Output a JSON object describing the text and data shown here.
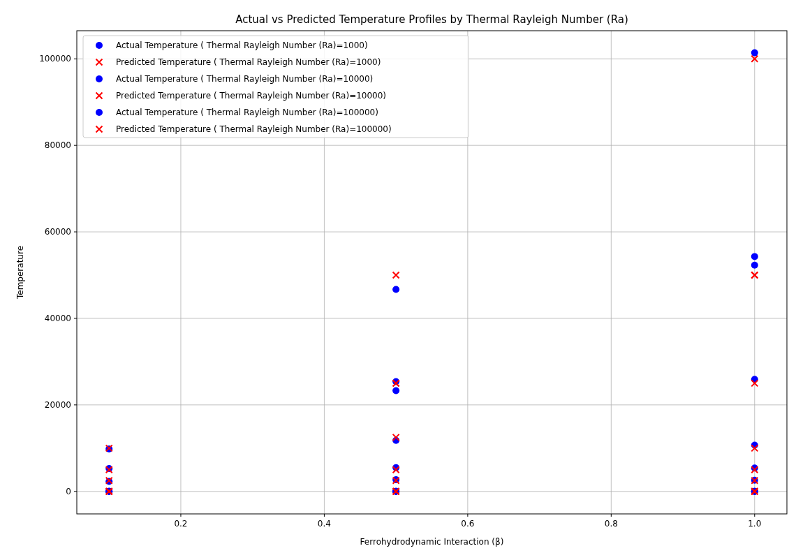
{
  "chart_data": {
    "type": "scatter",
    "title": "Actual vs Predicted Temperature Profiles by Thermal Rayleigh Number (Ra)",
    "xlabel": "Ferrohydrodynamic Interaction (β)",
    "ylabel": "Temperature",
    "xlim": [
      0.055,
      1.045
    ],
    "ylim": [
      -5200,
      106500
    ],
    "xticks": [
      0.2,
      0.4,
      0.6,
      0.8,
      {
        "value": 1,
        "label": "1.0"
      }
    ],
    "yticks": [
      0,
      20000,
      40000,
      60000,
      80000,
      100000
    ],
    "grid": true,
    "legend": "top left",
    "series": [
      {
        "name": "Actual Temperature ( Thermal Rayleigh Number (Ra)=1000)",
        "color": "#0000ff",
        "marker": "circle",
        "x": [
          0.1,
          0.1,
          0.1,
          0.5,
          0.5,
          0.5,
          1.0,
          1.0,
          1.0
        ],
        "values": [
          0,
          0,
          0,
          0,
          0,
          0,
          0,
          0,
          0
        ]
      },
      {
        "name": "Predicted Temperature ( Thermal Rayleigh Number (Ra)=1000)",
        "color": "#ff0000",
        "marker": "cross",
        "x": [
          0.1,
          0.1,
          0.1,
          0.5,
          0.5,
          0.5,
          1.0,
          1.0,
          1.0
        ],
        "values": [
          0,
          0,
          0,
          0,
          0,
          0,
          0,
          0,
          0
        ]
      },
      {
        "name": "Actual Temperature ( Thermal Rayleigh Number (Ra)=10000)",
        "color": "#0000ff",
        "marker": "circle",
        "x": [
          0.1,
          0.5,
          1.0
        ],
        "values": [
          2300,
          2700,
          2600
        ]
      },
      {
        "name": "Predicted Temperature ( Thermal Rayleigh Number (Ra)=10000)",
        "color": "#ff0000",
        "marker": "cross",
        "x": [
          0.1,
          0.5,
          1.0
        ],
        "values": [
          2500,
          2500,
          2500
        ]
      },
      {
        "name": "Actual Temperature ( Thermal Rayleigh Number (Ra)=100000)",
        "color": "#0000ff",
        "marker": "circle",
        "x": [
          0.1,
          0.1,
          0.5,
          0.5,
          0.5,
          0.5,
          0.5,
          1.0,
          1.0,
          1.0,
          1.0,
          1.0,
          1.0
        ],
        "values": [
          9800,
          5300,
          46700,
          25400,
          23300,
          11800,
          5500,
          101400,
          54300,
          52300,
          25900,
          10700,
          5400
        ]
      },
      {
        "name": "Predicted Temperature ( Thermal Rayleigh Number (Ra)=100000)",
        "color": "#ff0000",
        "marker": "cross",
        "x": [
          0.1,
          0.1,
          0.5,
          0.5,
          0.5,
          0.5,
          0.5,
          1.0,
          1.0,
          1.0,
          1.0,
          1.0,
          1.0
        ],
        "values": [
          10000,
          5000,
          50000,
          25000,
          25000,
          12500,
          5000,
          100000,
          50000,
          50000,
          25000,
          10000,
          5000
        ]
      }
    ]
  }
}
